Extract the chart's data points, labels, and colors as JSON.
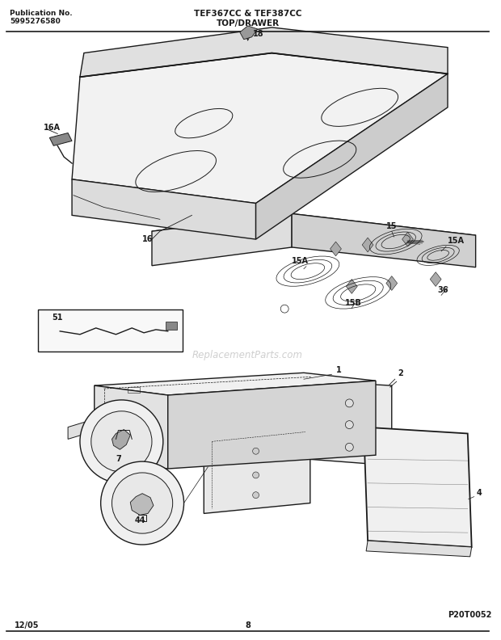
{
  "title_left_line1": "Publication No.",
  "title_left_line2": "5995276580",
  "title_center_line1": "TEF367CC & TEF387CC",
  "title_center_line2": "TOP/DRAWER",
  "bottom_left": "12/05",
  "bottom_center": "8",
  "bottom_right": "P20T0052",
  "bg_color": "#ffffff",
  "line_color": "#1a1a1a",
  "watermark": "ReplacementParts.com"
}
